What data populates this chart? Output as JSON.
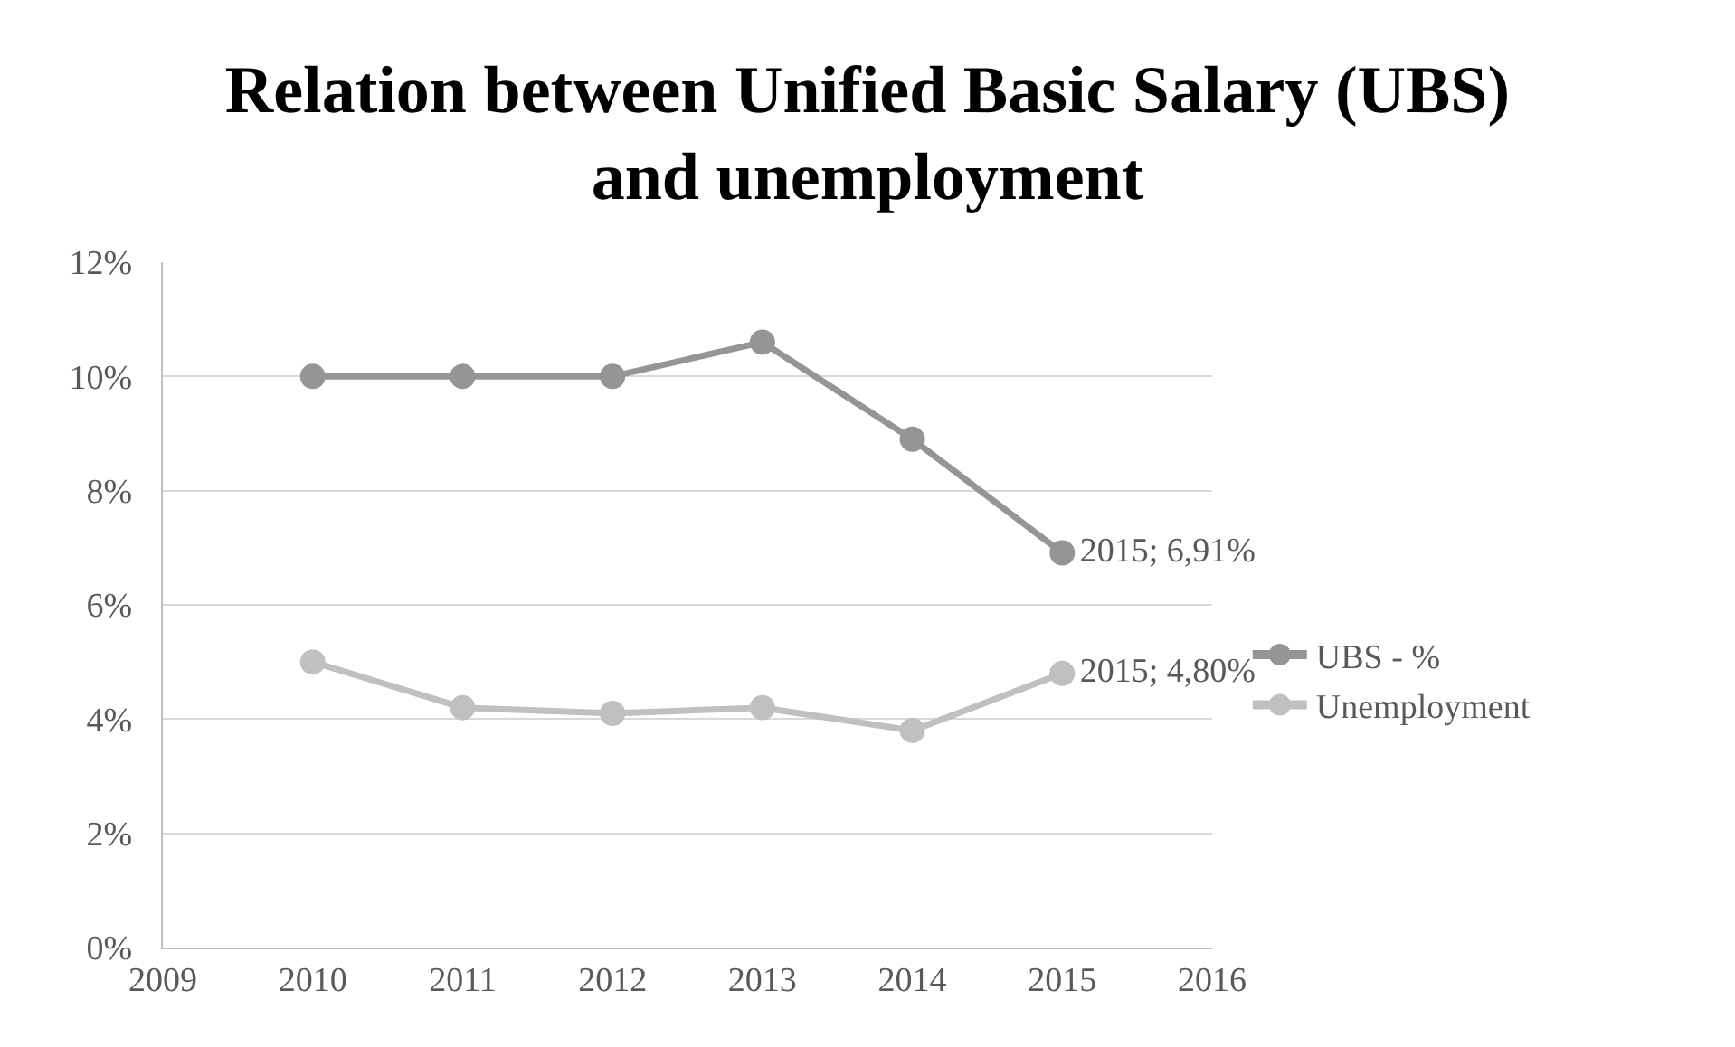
{
  "chart_data": {
    "type": "line",
    "title": "Relation between Unified Basic Salary (UBS)\nand unemployment",
    "x": [
      2010,
      2011,
      2012,
      2013,
      2014,
      2015
    ],
    "series": [
      {
        "name": "UBS - %",
        "color": "#959595",
        "values": [
          10,
          10,
          10,
          10.6,
          8.9,
          6.91
        ],
        "value_labels": [
          null,
          null,
          null,
          null,
          null,
          "2015; 6,91%"
        ]
      },
      {
        "name": "Unemployment",
        "color": "#c0c0c0",
        "values": [
          5.0,
          4.2,
          4.1,
          4.2,
          3.8,
          4.8
        ],
        "value_labels": [
          null,
          null,
          null,
          null,
          null,
          "2015; 4,80%"
        ]
      }
    ],
    "xlim": [
      2009,
      2016
    ],
    "xticks": [
      2009,
      2010,
      2011,
      2012,
      2013,
      2014,
      2015,
      2016
    ],
    "ylim": [
      0,
      12
    ],
    "yticks": [
      {
        "value": 0,
        "label": "0%"
      },
      {
        "value": 2,
        "label": "2%"
      },
      {
        "value": 4,
        "label": "4%"
      },
      {
        "value": 6,
        "label": "6%"
      },
      {
        "value": 8,
        "label": "8%"
      },
      {
        "value": 10,
        "label": "10%"
      },
      {
        "value": 12,
        "label": "12%"
      }
    ],
    "grid": "y",
    "legend": "right",
    "marker": "circle",
    "line_style": "solid"
  }
}
